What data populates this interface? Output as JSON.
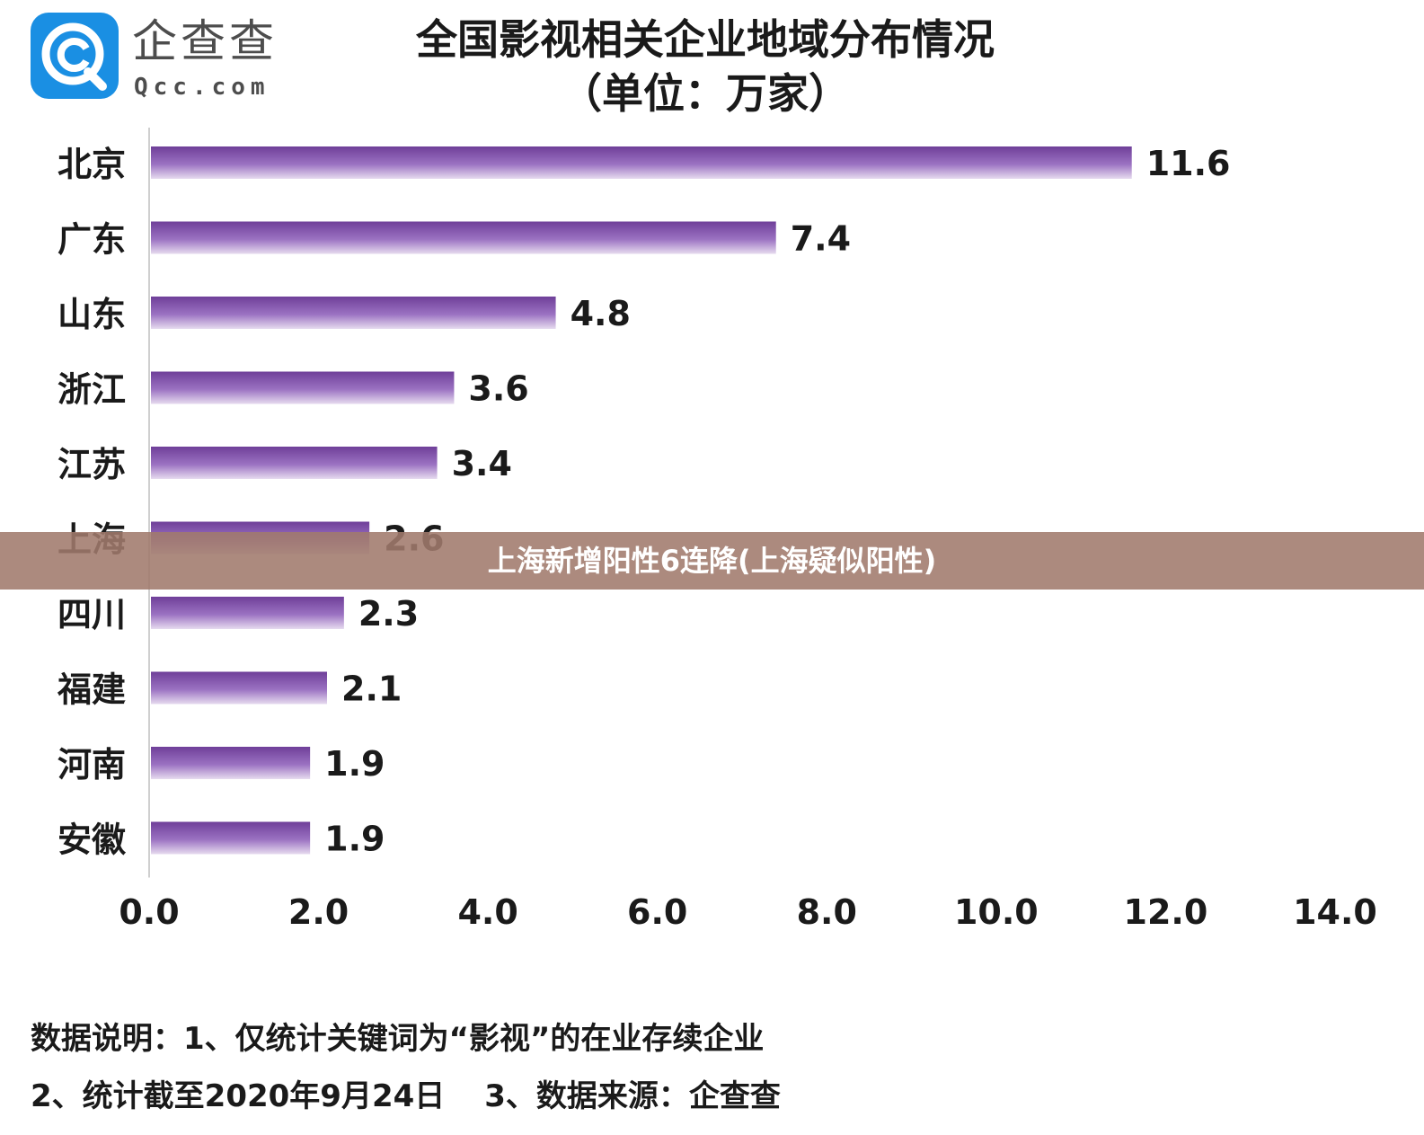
{
  "logo": {
    "cn": "企查查",
    "en": "Qcc.com",
    "icon": "qcc-logo-icon",
    "color": "#1a8fe3"
  },
  "banner": {
    "text": "上海新增阳性6连降(上海疑似阳性)"
  },
  "notes": {
    "line1": "数据说明：1、仅统计关键词为“影视”的在业存续企业",
    "line2a": "2、统计截至2020年9月24日",
    "line2b": "3、数据来源：企查查"
  },
  "chart_data": {
    "type": "bar",
    "orientation": "horizontal",
    "title": "全国影视相关企业地域分布情况",
    "subtitle": "（单位：万家）",
    "categories": [
      "北京",
      "广东",
      "山东",
      "浙江",
      "江苏",
      "上海",
      "四川",
      "福建",
      "河南",
      "安徽"
    ],
    "values": [
      11.6,
      7.4,
      4.8,
      3.6,
      3.4,
      2.6,
      2.3,
      2.1,
      1.9,
      1.9
    ],
    "value_labels": [
      "11.6",
      "7.4",
      "4.8",
      "3.6",
      "3.4",
      "2.6",
      "2.3",
      "2.1",
      "1.9",
      "1.9"
    ],
    "xlim": [
      0,
      14
    ],
    "xticks": [
      "0.0",
      "2.0",
      "4.0",
      "6.0",
      "8.0",
      "10.0",
      "12.0",
      "14.0"
    ],
    "grid": false,
    "bar_color": "#8a5ab0",
    "bar_color_light": "#e4d6ef"
  }
}
